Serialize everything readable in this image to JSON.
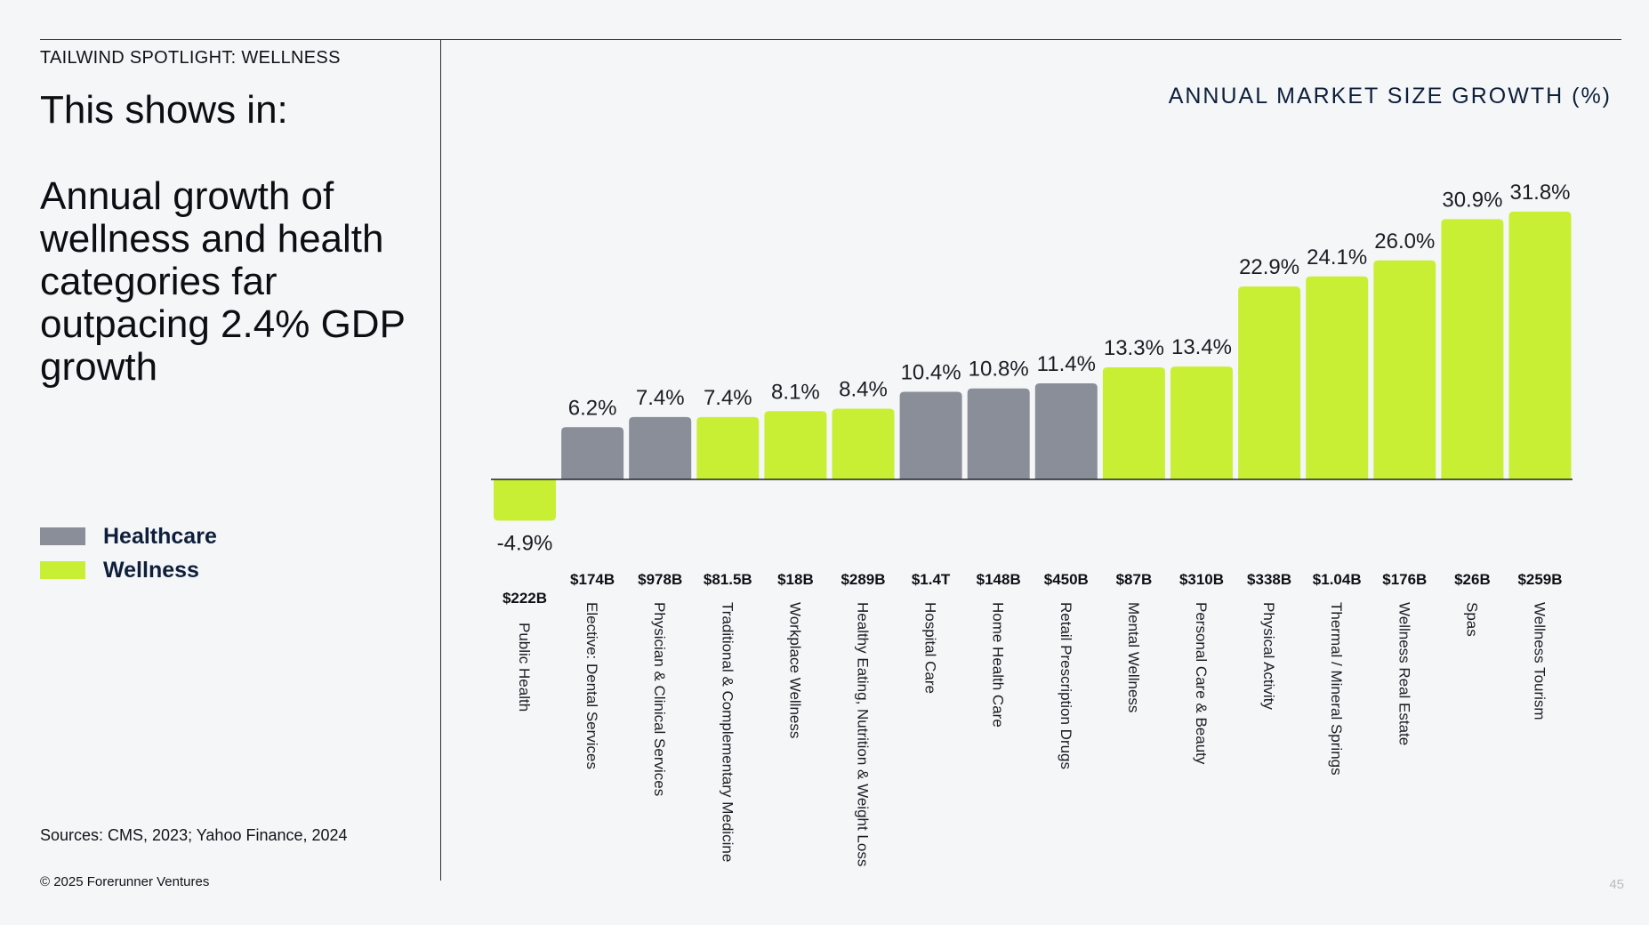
{
  "eyebrow": "TAILWIND SPOTLIGHT: WELLNESS",
  "lead": "This shows in:",
  "headline": "Annual growth of wellness and health categories far outpacing 2.4% GDP growth",
  "legend": [
    {
      "label": "Healthcare",
      "color": "#898e98"
    },
    {
      "label": "Wellness",
      "color": "#c9ef35"
    }
  ],
  "sources": "Sources: CMS, 2023; Yahoo Finance, 2024",
  "copyright": "© 2025 Forerunner Ventures",
  "page_number": "45",
  "chart_data": {
    "type": "bar",
    "title": "ANNUAL MARKET SIZE GROWTH (%)",
    "xlabel": "",
    "ylabel": "",
    "ylim": [
      -4.9,
      31.8
    ],
    "grid": false,
    "legend_position": "left",
    "unit": "%",
    "categories": [
      "Public Health",
      "Elective: Dental Services",
      "Physician & Clinical Services",
      "Traditional & Complementary Medicine",
      "Workplace Wellness",
      "Healthy Eating, Nutrition & Weight Loss",
      "Hospital Care",
      "Home Health Care",
      "Retail Prescription Drugs",
      "Mental Wellness",
      "Personal Care & Beauty",
      "Physical Activity",
      "Thermal / Mineral Springs",
      "Wellness Real Estate",
      "Spas",
      "Wellness Tourism"
    ],
    "values": [
      -4.9,
      6.2,
      7.4,
      7.4,
      8.1,
      8.4,
      10.4,
      10.8,
      11.4,
      13.3,
      13.4,
      22.9,
      24.1,
      26.0,
      30.9,
      31.8
    ],
    "value_labels": [
      "-4.9%",
      "6.2%",
      "7.4%",
      "7.4%",
      "8.1%",
      "8.4%",
      "10.4%",
      "10.8%",
      "11.4%",
      "13.3%",
      "13.4%",
      "22.9%",
      "24.1%",
      "26.0%",
      "30.9%",
      "31.8%"
    ],
    "market_sizes": [
      "$222B",
      "$174B",
      "$978B",
      "$81.5B",
      "$18B",
      "$289B",
      "$1.4T",
      "$148B",
      "$450B",
      "$87B",
      "$310B",
      "$338B",
      "$1.04B",
      "$176B",
      "$26B",
      "$259B"
    ],
    "groups": [
      "Wellness",
      "Healthcare",
      "Healthcare",
      "Wellness",
      "Wellness",
      "Wellness",
      "Healthcare",
      "Healthcare",
      "Healthcare",
      "Wellness",
      "Wellness",
      "Wellness",
      "Wellness",
      "Wellness",
      "Wellness",
      "Wellness"
    ]
  }
}
